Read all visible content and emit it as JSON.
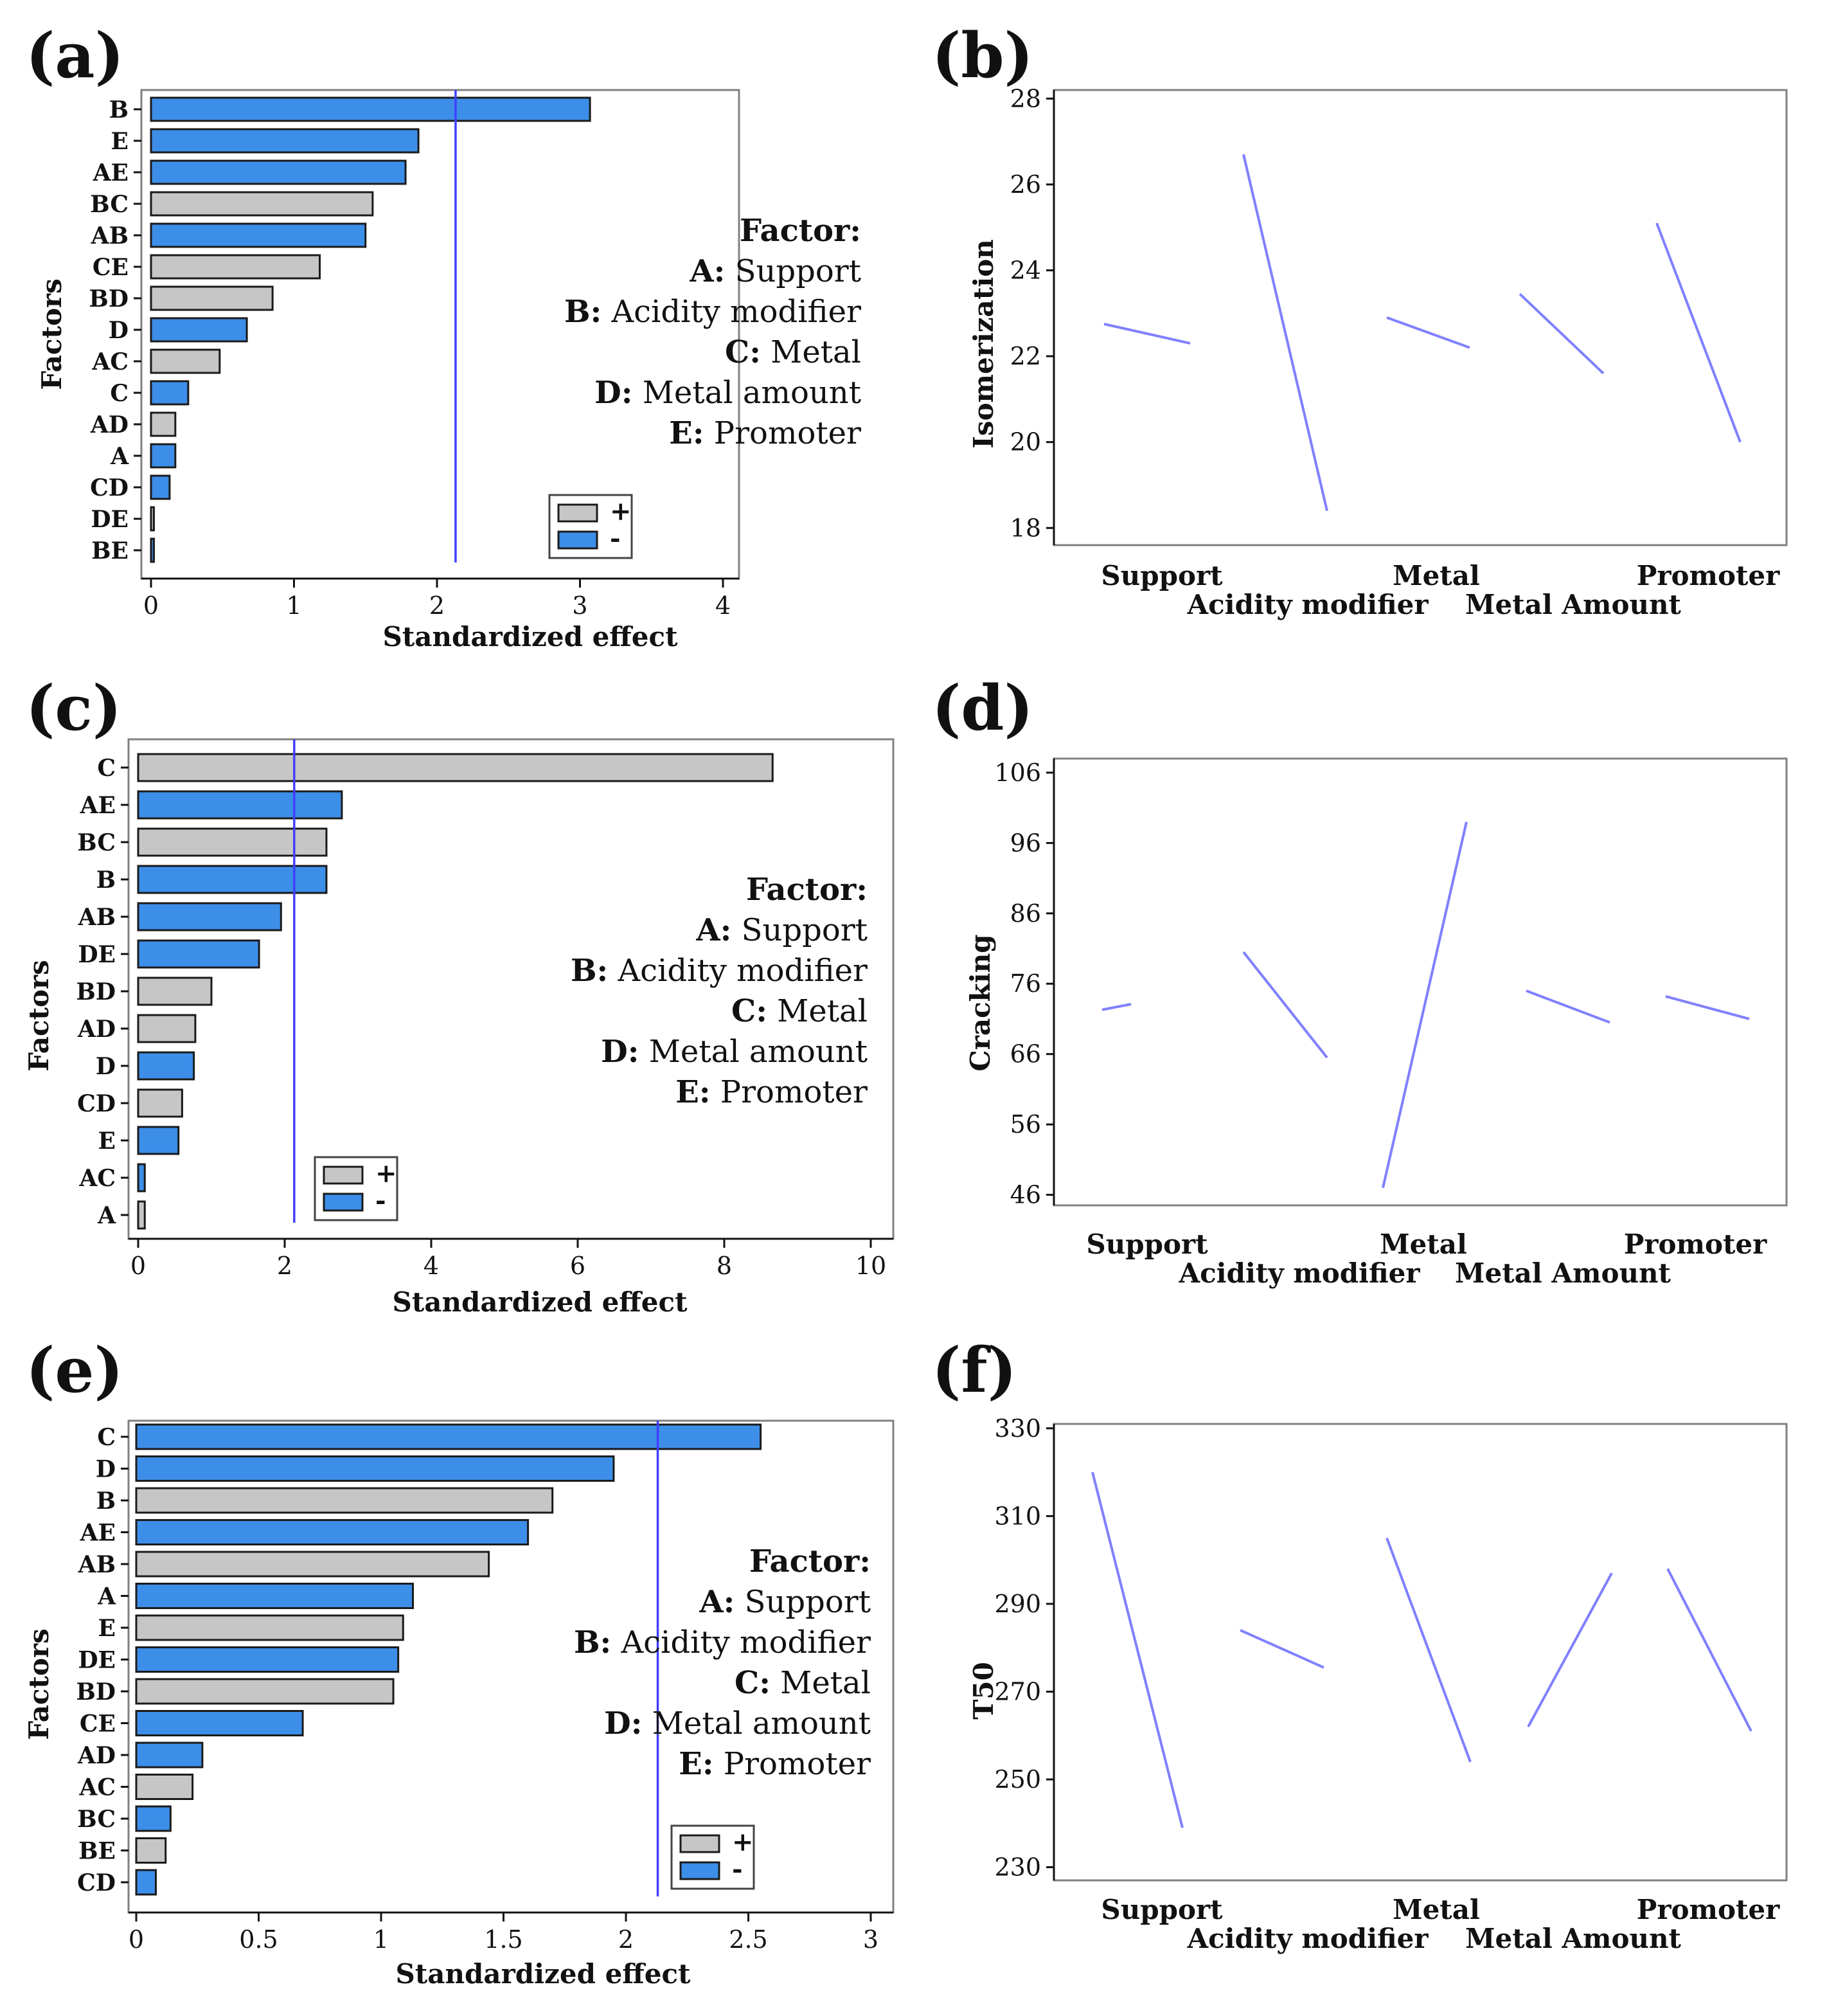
{
  "chart_data": [
    {
      "panel": "(a)",
      "type": "bar",
      "orientation": "horizontal",
      "title": "",
      "xlabel": "Standardized effect",
      "ylabel": "Factors",
      "xlim": [
        0,
        4
      ],
      "xticks": [
        "0",
        "1",
        "2",
        "3",
        "4"
      ],
      "xtick_values": [
        0,
        1,
        2,
        3,
        4
      ],
      "categories": [
        "B",
        "E",
        "AE",
        "BC",
        "AB",
        "CE",
        "BD",
        "D",
        "AC",
        "C",
        "AD",
        "A",
        "CD",
        "DE",
        "BE"
      ],
      "values": [
        3.07,
        1.87,
        1.78,
        1.55,
        1.5,
        1.18,
        0.85,
        0.67,
        0.48,
        0.26,
        0.17,
        0.17,
        0.13,
        0.02,
        0.02
      ],
      "signs": [
        "-",
        "-",
        "-",
        "+",
        "-",
        "+",
        "+",
        "-",
        "+",
        "-",
        "+",
        "-",
        "-",
        "+",
        "-"
      ],
      "reference_line": 2.13,
      "factor_title": "Factor:",
      "factor_legend": [
        {
          "code": "A",
          "sep": ":",
          "name": " Support"
        },
        {
          "code": "B",
          "sep": ":",
          "name": " Acidity modifier"
        },
        {
          "code": "C",
          "sep": ":",
          "name": " Metal"
        },
        {
          "code": "D",
          "sep": ":",
          "name": " Metal amount"
        },
        {
          "code": "E",
          "sep": ":",
          "name": " Promoter"
        }
      ],
      "sign_legend": [
        {
          "symbol": "+",
          "color": "#c6c6c6"
        },
        {
          "symbol": "-",
          "color": "#3d8ee8"
        }
      ]
    },
    {
      "panel": "(b)",
      "type": "line",
      "title": "",
      "ylabel": "Isomerization",
      "ylim": [
        17.6,
        28.2
      ],
      "yticks": [
        "18",
        "20",
        "22",
        "24",
        "26",
        "28"
      ],
      "ytick_values": [
        18,
        20,
        22,
        24,
        26,
        28
      ],
      "xlabels_top": [
        "Support",
        "Metal",
        "Promoter"
      ],
      "xlabels_bottom": [
        "Acidity modifier",
        "Metal Amount"
      ],
      "series": [
        {
          "name": "Support",
          "values": [
            22.75,
            22.3
          ]
        },
        {
          "name": "Acidity modifier",
          "values": [
            26.7,
            18.4
          ]
        },
        {
          "name": "Metal",
          "values": [
            22.9,
            22.2
          ]
        },
        {
          "name": "Metal Amount",
          "values": [
            23.45,
            21.6
          ]
        },
        {
          "name": "Promoter",
          "values": [
            25.1,
            20.0
          ]
        }
      ]
    },
    {
      "panel": "(c)",
      "type": "bar",
      "orientation": "horizontal",
      "title": "",
      "xlabel": "Standardized effect",
      "ylabel": "Factors",
      "xlim": [
        0,
        10
      ],
      "xticks": [
        "0",
        "2",
        "4",
        "6",
        "8",
        "10"
      ],
      "xtick_values": [
        0,
        2,
        4,
        6,
        8,
        10
      ],
      "categories": [
        "C",
        "AE",
        "BC",
        "B",
        "AB",
        "DE",
        "BD",
        "AD",
        "D",
        "CD",
        "E",
        "AC",
        "A"
      ],
      "values": [
        8.66,
        2.78,
        2.57,
        2.57,
        1.95,
        1.65,
        1.0,
        0.78,
        0.76,
        0.6,
        0.55,
        0.09,
        0.09
      ],
      "signs": [
        "+",
        "-",
        "+",
        "-",
        "-",
        "-",
        "+",
        "+",
        "-",
        "+",
        "-",
        "-",
        "+"
      ],
      "reference_line": 2.13,
      "factor_title": "Factor:",
      "factor_legend": [
        {
          "code": "A",
          "sep": ":",
          "name": " Support"
        },
        {
          "code": "B",
          "sep": ":",
          "name": " Acidity modifier"
        },
        {
          "code": "C",
          "sep": ":",
          "name": " Metal"
        },
        {
          "code": "D",
          "sep": ":",
          "name": " Metal amount"
        },
        {
          "code": "E",
          "sep": ":",
          "name": " Promoter"
        }
      ],
      "sign_legend": [
        {
          "symbol": "+",
          "color": "#c6c6c6"
        },
        {
          "symbol": "-",
          "color": "#3d8ee8"
        }
      ]
    },
    {
      "panel": "(d)",
      "type": "line",
      "title": "",
      "ylabel": "Cracking",
      "ylim": [
        44.5,
        108
      ],
      "yticks": [
        "46",
        "56",
        "66",
        "76",
        "86",
        "96",
        "106"
      ],
      "ytick_values": [
        46,
        56,
        66,
        76,
        86,
        96,
        106
      ],
      "xlabels_top": [
        "Support",
        "Metal",
        "Promoter"
      ],
      "xlabels_bottom": [
        "Acidity modifier",
        "Metal Amount"
      ],
      "series": [
        {
          "name": "Support",
          "values": [
            72.3,
            73.1
          ]
        },
        {
          "name": "Acidity modifier",
          "values": [
            80.5,
            65.5
          ]
        },
        {
          "name": "Metal",
          "values": [
            47.0,
            99.0
          ]
        },
        {
          "name": "Metal Amount",
          "values": [
            75.0,
            70.5
          ]
        },
        {
          "name": "Promoter",
          "values": [
            74.2,
            71.0
          ]
        }
      ]
    },
    {
      "panel": "(e)",
      "type": "bar",
      "orientation": "horizontal",
      "title": "",
      "xlabel": "Standardized effect",
      "ylabel": "Factors",
      "xlim": [
        0,
        3
      ],
      "xticks": [
        "0",
        "0.5",
        "1",
        "1.5",
        "2",
        "2.5",
        "3"
      ],
      "xtick_values": [
        0,
        0.5,
        1,
        1.5,
        2,
        2.5,
        3
      ],
      "categories": [
        "C",
        "D",
        "B",
        "AE",
        "AB",
        "A",
        "E",
        "DE",
        "BD",
        "CE",
        "AD",
        "AC",
        "BC",
        "BE",
        "CD"
      ],
      "values": [
        2.55,
        1.95,
        1.7,
        1.6,
        1.44,
        1.13,
        1.09,
        1.07,
        1.05,
        0.68,
        0.27,
        0.23,
        0.14,
        0.12,
        0.08
      ],
      "signs": [
        "-",
        "-",
        "+",
        "-",
        "+",
        "-",
        "+",
        "-",
        "+",
        "-",
        "-",
        "+",
        "-",
        "+",
        "-"
      ],
      "reference_line": 2.13,
      "factor_title": "Factor:",
      "factor_legend": [
        {
          "code": "A",
          "sep": ":",
          "name": " Support"
        },
        {
          "code": "B",
          "sep": ":",
          "name": " Acidity modifier"
        },
        {
          "code": "C",
          "sep": ":",
          "name": " Metal"
        },
        {
          "code": "D",
          "sep": ":",
          "name": " Metal amount"
        },
        {
          "code": "E",
          "sep": ":",
          "name": " Promoter"
        }
      ],
      "sign_legend": [
        {
          "symbol": "+",
          "color": "#c6c6c6"
        },
        {
          "symbol": "-",
          "color": "#3d8ee8"
        }
      ]
    },
    {
      "panel": "(f)",
      "type": "line",
      "title": "",
      "ylabel": "T50",
      "ylim": [
        227,
        331
      ],
      "yticks": [
        "230",
        "250",
        "270",
        "290",
        "310",
        "330"
      ],
      "ytick_values": [
        230,
        250,
        270,
        290,
        310,
        330
      ],
      "xlabels_top": [
        "Support",
        "Metal",
        "Promoter"
      ],
      "xlabels_bottom": [
        "Acidity modifier",
        "Metal Amount"
      ],
      "series": [
        {
          "name": "Support",
          "values": [
            320,
            239
          ]
        },
        {
          "name": "Acidity modifier",
          "values": [
            284,
            275.5
          ]
        },
        {
          "name": "Metal",
          "values": [
            305,
            254
          ]
        },
        {
          "name": "Metal Amount",
          "values": [
            262,
            297
          ]
        },
        {
          "name": "Promoter",
          "values": [
            298,
            261
          ]
        }
      ]
    }
  ]
}
